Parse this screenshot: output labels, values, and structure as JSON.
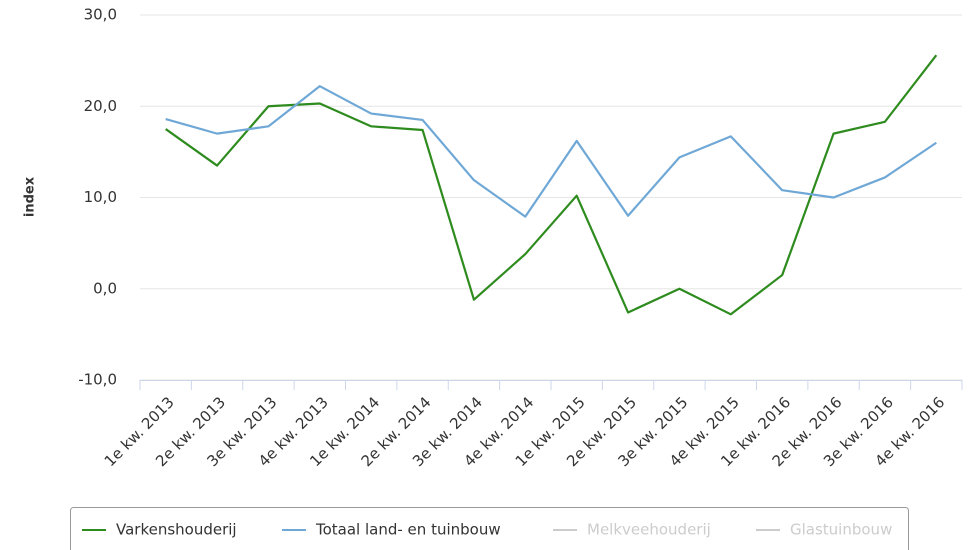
{
  "chart_data": {
    "type": "line",
    "ylabel": "index",
    "categories": [
      "1e kw. 2013",
      "2e kw. 2013",
      "3e kw. 2013",
      "4e kw. 2013",
      "1e kw. 2014",
      "2e kw. 2014",
      "3e kw. 2014",
      "4e kw. 2014",
      "1e kw. 2015",
      "2e kw. 2015",
      "3e kw. 2015",
      "4e kw. 2015",
      "1e kw. 2016",
      "2e kw. 2016",
      "3e kw. 2016",
      "4e kw. 2016"
    ],
    "series": [
      {
        "name": "Varkenshouderij",
        "color": "#2e8b1e",
        "values": [
          17.5,
          13.5,
          20.0,
          20.3,
          17.8,
          17.4,
          -1.2,
          3.8,
          10.2,
          -2.6,
          0.0,
          -2.8,
          1.5,
          17.0,
          18.3,
          25.6
        ]
      },
      {
        "name": "Totaal land- en tuinbouw",
        "color": "#6fa8d6",
        "values": [
          18.6,
          17.0,
          17.8,
          22.2,
          19.2,
          18.5,
          11.9,
          7.9,
          16.2,
          8.0,
          14.4,
          16.7,
          10.8,
          10.0,
          12.2,
          16.0
        ]
      },
      {
        "name": "Melkveehouderij",
        "color": "#cccccc",
        "visible": false,
        "values": [
          null,
          null,
          null,
          null,
          null,
          null,
          null,
          null,
          null,
          null,
          null,
          null,
          null,
          null,
          null,
          null
        ]
      },
      {
        "name": "Glastuinbouw",
        "color": "#cccccc",
        "visible": false,
        "values": [
          null,
          null,
          null,
          null,
          null,
          null,
          null,
          null,
          null,
          null,
          null,
          null,
          null,
          null,
          null,
          null
        ]
      }
    ],
    "ylim": [
      -10,
      30
    ],
    "yticks": [
      {
        "value": -10,
        "label": "-10,0"
      },
      {
        "value": 0,
        "label": "0,0"
      },
      {
        "value": 10,
        "label": "10,0"
      },
      {
        "value": 20,
        "label": "20,0"
      },
      {
        "value": 30,
        "label": "30,0"
      }
    ],
    "grid": true,
    "legend": "bottom"
  }
}
